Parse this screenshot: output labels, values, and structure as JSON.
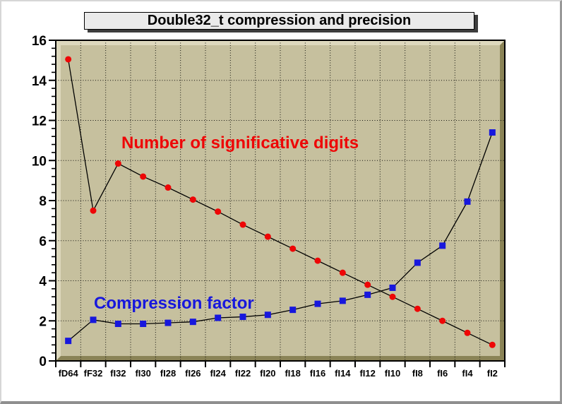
{
  "colors": {
    "canvas_bg": "#ffffff",
    "frame_fill": "#c6c09e",
    "bevel_light": "#ddd8bd",
    "bevel_dark": "#8a8356",
    "frame_border": "#000000",
    "grid": "#000000",
    "pave_fill": "#eaeaea",
    "pave_shadow": "#3d3d3d",
    "red": "#ee0606",
    "blue": "#1717dd",
    "line": "#000000",
    "axis_text": "#000000"
  },
  "chart_data": {
    "type": "line",
    "title": "Double32_t compression and precision",
    "categories": [
      "fD64",
      "fF32",
      "fI32",
      "fI30",
      "fI28",
      "fI26",
      "fI24",
      "fI22",
      "fI20",
      "fI18",
      "fI16",
      "fI14",
      "fI12",
      "fI10",
      "fI8",
      "fI6",
      "fI4",
      "fI2"
    ],
    "xlabel": "",
    "ylabel": "",
    "ylim": [
      0,
      16
    ],
    "y_ticks": [
      0,
      2,
      4,
      6,
      8,
      10,
      12,
      14,
      16
    ],
    "y_minor_tick_step": 0.4,
    "grid": {
      "style": "dotted",
      "vertical": true,
      "horizontal": true
    },
    "legend_position": "text labels inside plot",
    "series": [
      {
        "name": "Number of significative digits",
        "marker": "circle",
        "color": "#ee0606",
        "line_color": "#000000",
        "values": [
          15.05,
          7.5,
          9.85,
          9.2,
          8.65,
          8.05,
          7.45,
          6.8,
          6.2,
          5.6,
          5.0,
          4.4,
          3.8,
          3.2,
          2.6,
          2.0,
          1.4,
          0.8
        ]
      },
      {
        "name": "Compression factor",
        "marker": "square",
        "color": "#1717dd",
        "line_color": "#000000",
        "values": [
          1.0,
          2.05,
          1.85,
          1.85,
          1.9,
          1.95,
          2.15,
          2.2,
          2.3,
          2.55,
          2.85,
          3.0,
          3.3,
          3.65,
          4.9,
          5.75,
          7.95,
          11.4
        ]
      }
    ]
  }
}
